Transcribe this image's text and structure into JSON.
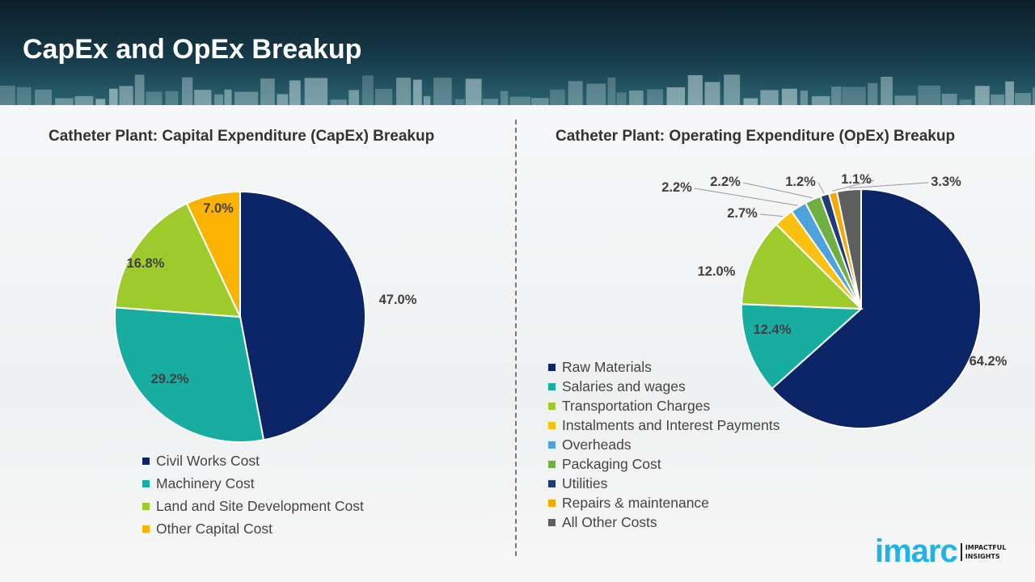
{
  "header": {
    "title": "CapEx and OpEx Breakup"
  },
  "logo": {
    "brand": "imarc",
    "tagline_1": "IMPACTFUL",
    "tagline_2": "INSIGHTS"
  },
  "chart_data": [
    {
      "type": "pie",
      "title": "Catheter Plant: Capital Expenditure (CapEx) Breakup",
      "categories": [
        "Civil Works Cost",
        "Machinery Cost",
        "Land and Site Development Cost",
        "Other Capital Cost"
      ],
      "values": [
        47.0,
        29.2,
        16.8,
        7.0
      ],
      "labels": [
        "47.0%",
        "29.2%",
        "16.8%",
        "7.0%"
      ],
      "colors": [
        "#0b2566",
        "#17ada0",
        "#9dcb2b",
        "#fbb200"
      ],
      "legend": "bottom"
    },
    {
      "type": "pie",
      "title": "Catheter Plant: Operating Expenditure (OpEx) Breakup",
      "categories": [
        "Raw Materials",
        "Salaries and wages",
        "Transportation Charges",
        "Instalments and Interest Payments",
        "Overheads",
        "Packaging Cost",
        "Utilities",
        "Repairs & maintenance",
        "All Other Costs"
      ],
      "values": [
        64.2,
        12.4,
        12.0,
        2.7,
        2.2,
        2.2,
        1.2,
        1.1,
        3.3
      ],
      "labels": [
        "64.2%",
        "12.4%",
        "12.0%",
        "2.7%",
        "2.2%",
        "2.2%",
        "1.2%",
        "1.1%",
        "3.3%"
      ],
      "colors": [
        "#0b2566",
        "#17ada0",
        "#9dcb2b",
        "#fcc10f",
        "#4ea3dc",
        "#6fb043",
        "#1f3b78",
        "#f5a800",
        "#5f5f5f"
      ],
      "legend": "left-bottom"
    }
  ]
}
